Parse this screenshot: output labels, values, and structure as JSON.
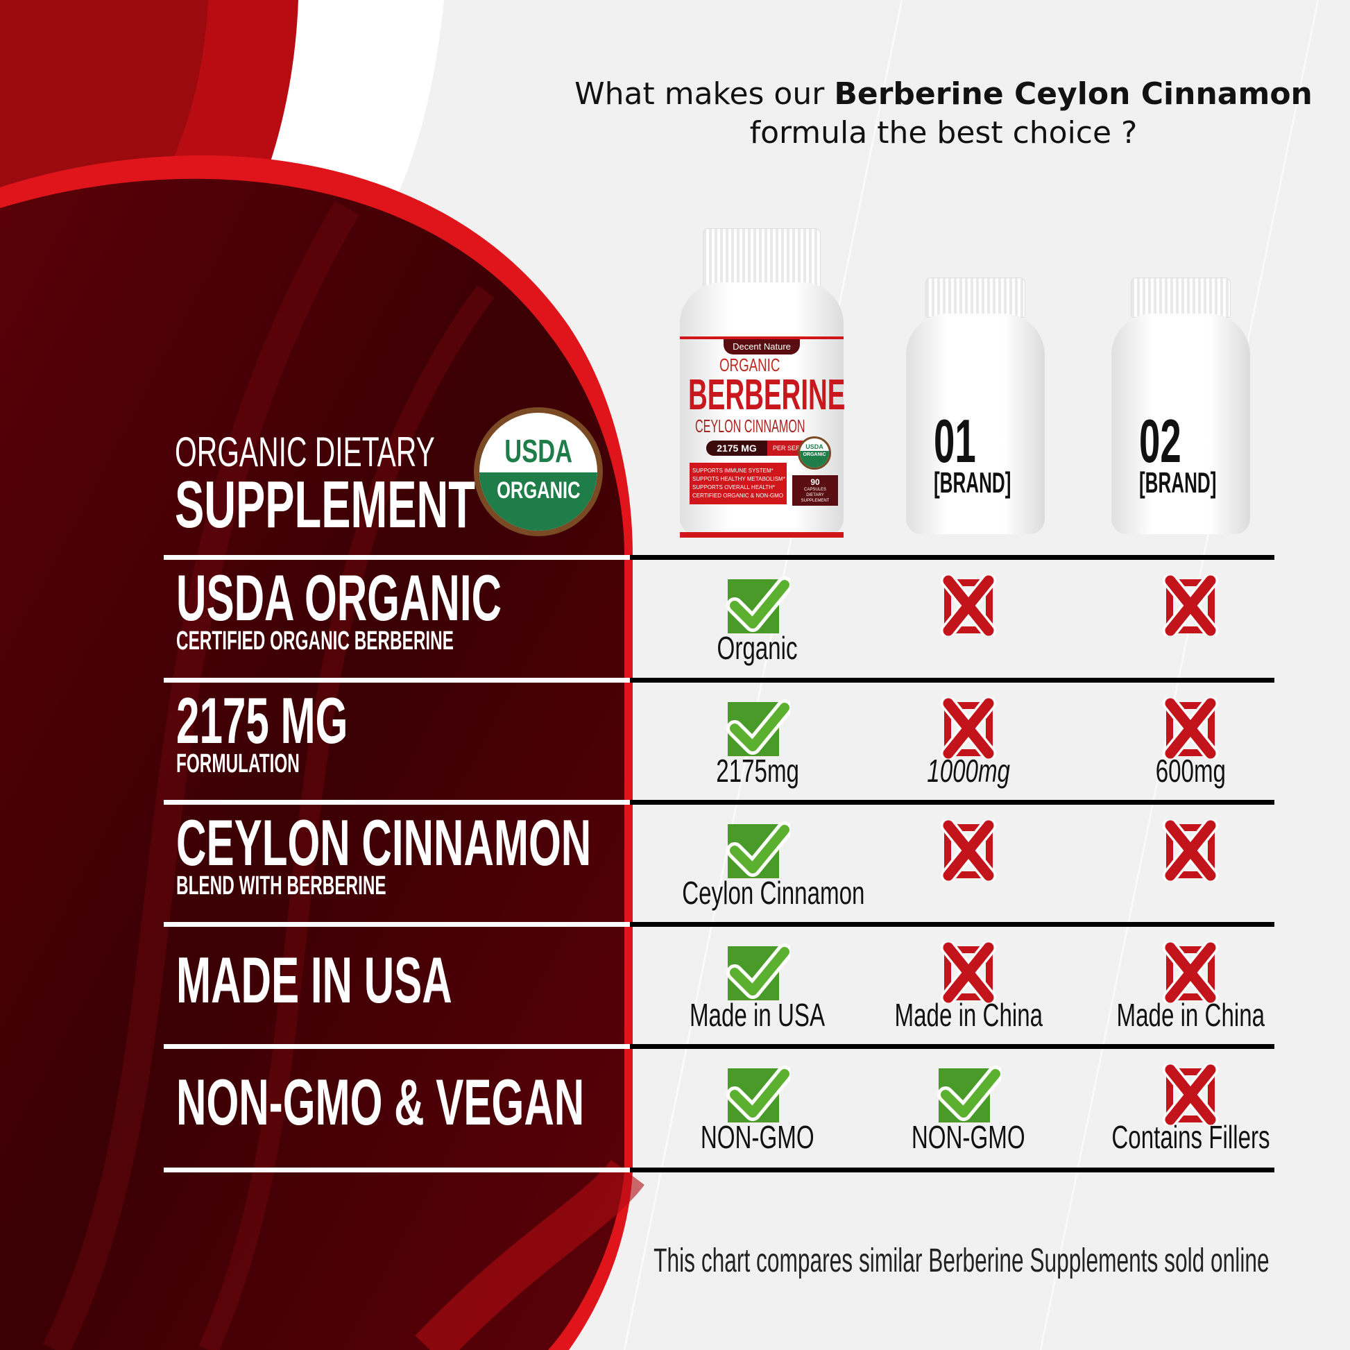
{
  "header": {
    "title_prefix": "What makes our ",
    "title_bold": "Berberine Ceylon Cinnamon",
    "title_line2": "formula the best choice ?"
  },
  "left_heading": {
    "line1": "ORGANIC DIETARY",
    "line2": "SUPPLEMENT"
  },
  "seal": {
    "top": "USDA",
    "bottom": "ORGANIC"
  },
  "product": {
    "brand": "Decent Nature",
    "line1": "ORGANIC",
    "line2": "BERBERINE",
    "line3": "CEYLON CINNAMON",
    "dose": "2175 MG",
    "per": "PER SERVING",
    "seal_top": "USDA",
    "seal_bottom": "ORGANIC",
    "bullets": [
      "SUPPORTS IMMUNE SYSTEM*",
      "SUPPOTS HEALTHY METABOLISM*",
      "SUPPORTS OVERALL HEALTH*",
      "CERTIFIED ORGANIC & NON-GMO"
    ],
    "count": "90",
    "count_unit": "CAPSULES",
    "type": "DIETARY SUPPLEMENT"
  },
  "competitors": [
    {
      "number": "01",
      "name": "[BRAND]"
    },
    {
      "number": "02",
      "name": "[BRAND]"
    }
  ],
  "colors": {
    "check": "#4a9a2a",
    "cross": "#c4141b",
    "panel": "#3d0005",
    "accent": "#d9141c"
  },
  "rows": [
    {
      "title": "USDA ORGANIC",
      "subtitle": "CERTIFIED ORGANIC BERBERINE",
      "cells": [
        {
          "status": "check",
          "text": "Organic"
        },
        {
          "status": "cross",
          "text": ""
        },
        {
          "status": "cross",
          "text": ""
        }
      ]
    },
    {
      "title": "2175 MG",
      "subtitle": "FORMULATION",
      "cells": [
        {
          "status": "check",
          "text": "2175mg"
        },
        {
          "status": "cross",
          "text": "1000mg"
        },
        {
          "status": "cross",
          "text": "600mg"
        }
      ]
    },
    {
      "title": "CEYLON CINNAMON",
      "subtitle": "BLEND WITH BERBERINE",
      "cells": [
        {
          "status": "check",
          "text": "Ceylon Cinnamon"
        },
        {
          "status": "cross",
          "text": ""
        },
        {
          "status": "cross",
          "text": ""
        }
      ]
    },
    {
      "title": "MADE IN USA",
      "subtitle": "",
      "cells": [
        {
          "status": "check",
          "text": "Made in USA"
        },
        {
          "status": "cross",
          "text": "Made in China"
        },
        {
          "status": "cross",
          "text": "Made in China"
        }
      ]
    },
    {
      "title": "NON-GMO & VEGAN",
      "subtitle": "",
      "cells": [
        {
          "status": "check",
          "text": "NON-GMO"
        },
        {
          "status": "check",
          "text": "NON-GMO"
        },
        {
          "status": "cross",
          "text": "Contains Fillers"
        }
      ]
    }
  ],
  "footer": "This chart compares similar Berberine Supplements sold online"
}
